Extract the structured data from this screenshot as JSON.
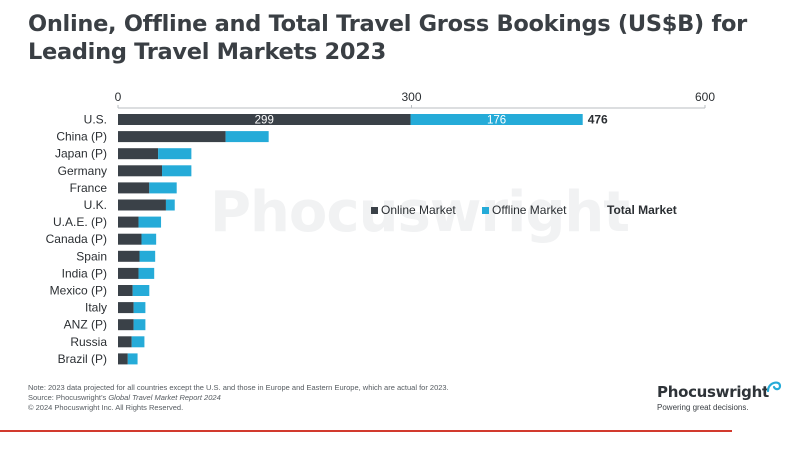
{
  "title": {
    "line1": "Online, Offline and Total Travel Gross Bookings (US$B) for",
    "line2": "Leading Travel Markets 2023"
  },
  "watermark": "Phocuswright",
  "chart_data": {
    "type": "bar",
    "orientation": "horizontal",
    "stacked": true,
    "categories": [
      "U.S.",
      "China (P)",
      "Japan (P)",
      "Germany",
      "France",
      "U.K.",
      "U.A.E. (P)",
      "Canada (P)",
      "Spain",
      "India (P)",
      "Mexico (P)",
      "Italy",
      "ANZ (P)",
      "Russia",
      "Brazil (P)"
    ],
    "series": [
      {
        "name": "Online Market",
        "color": "#3a4148",
        "values": [
          299,
          110,
          41,
          45,
          32,
          49,
          21,
          24,
          22,
          21,
          15,
          16,
          16,
          14,
          10
        ]
      },
      {
        "name": "Offline Market",
        "color": "#25abd8",
        "values": [
          176,
          44,
          34,
          30,
          28,
          9,
          23,
          15,
          16,
          16,
          17,
          12,
          12,
          13,
          10
        ]
      }
    ],
    "total_label_name": "Total Market",
    "data_labels": {
      "U.S.": {
        "online": "299",
        "offline": "176",
        "total": "476"
      }
    },
    "xlim": [
      0,
      600
    ],
    "xticks": [
      "0",
      "300",
      "600"
    ],
    "xaxis_position": "top",
    "grid": false,
    "legend_position": "center-right"
  },
  "notes": {
    "line1": "Note:  2023 data projected for all countries except the U.S. and those in Europe and Eastern Europe, which are actual for 2023.",
    "line2_prefix": "Source: Phocuswright’s ",
    "line2_italic": "Global Travel Market Report 2024",
    "line3": "© 2024 Phocuswright Inc. All Rights Reserved."
  },
  "logo": {
    "name": "Phocuswright",
    "tagline": "Powering great decisions.",
    "mark_color": "#25abd8"
  },
  "accent_color": "#d23a2e"
}
